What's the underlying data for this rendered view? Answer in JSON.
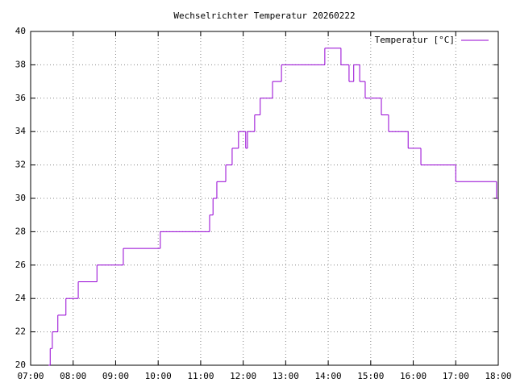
{
  "chart_data": {
    "type": "line",
    "step": "post",
    "title": "Wechselrichter Temperatur 20260222",
    "series": [
      {
        "name": "Temperatur [°C]",
        "color": "#9400d3",
        "x": [
          7.42,
          7.46,
          7.51,
          7.64,
          7.83,
          8.12,
          8.56,
          9.18,
          10.05,
          11.21,
          11.29,
          11.38,
          11.59,
          11.74,
          11.89,
          12.06,
          12.1,
          12.27,
          12.4,
          12.69,
          12.9,
          13.92,
          14.3,
          14.49,
          14.6,
          14.74,
          14.87,
          15.25,
          15.42,
          15.88,
          16.18,
          17.0,
          17.96
        ],
        "values": [
          20,
          21,
          22,
          23,
          24,
          25,
          26,
          27,
          28,
          29,
          30,
          31,
          32,
          33,
          34,
          33,
          34,
          35,
          36,
          37,
          38,
          39,
          38,
          37,
          38,
          37,
          36,
          35,
          34,
          33,
          32,
          31,
          30
        ]
      }
    ],
    "xlim": [
      7,
      18
    ],
    "xticks": [
      {
        "value": 7,
        "label": "07:00"
      },
      {
        "value": 8,
        "label": "08:00"
      },
      {
        "value": 9,
        "label": "09:00"
      },
      {
        "value": 10,
        "label": "10:00"
      },
      {
        "value": 11,
        "label": "11:00"
      },
      {
        "value": 12,
        "label": "12:00"
      },
      {
        "value": 13,
        "label": "13:00"
      },
      {
        "value": 14,
        "label": "14:00"
      },
      {
        "value": 15,
        "label": "15:00"
      },
      {
        "value": 16,
        "label": "16:00"
      },
      {
        "value": 17,
        "label": "17:00"
      },
      {
        "value": 18,
        "label": "18:00"
      }
    ],
    "ylim": [
      20,
      40
    ],
    "yticks": [
      20,
      22,
      24,
      26,
      28,
      30,
      32,
      34,
      36,
      38,
      40
    ],
    "grid": true,
    "legend": "top-right"
  }
}
